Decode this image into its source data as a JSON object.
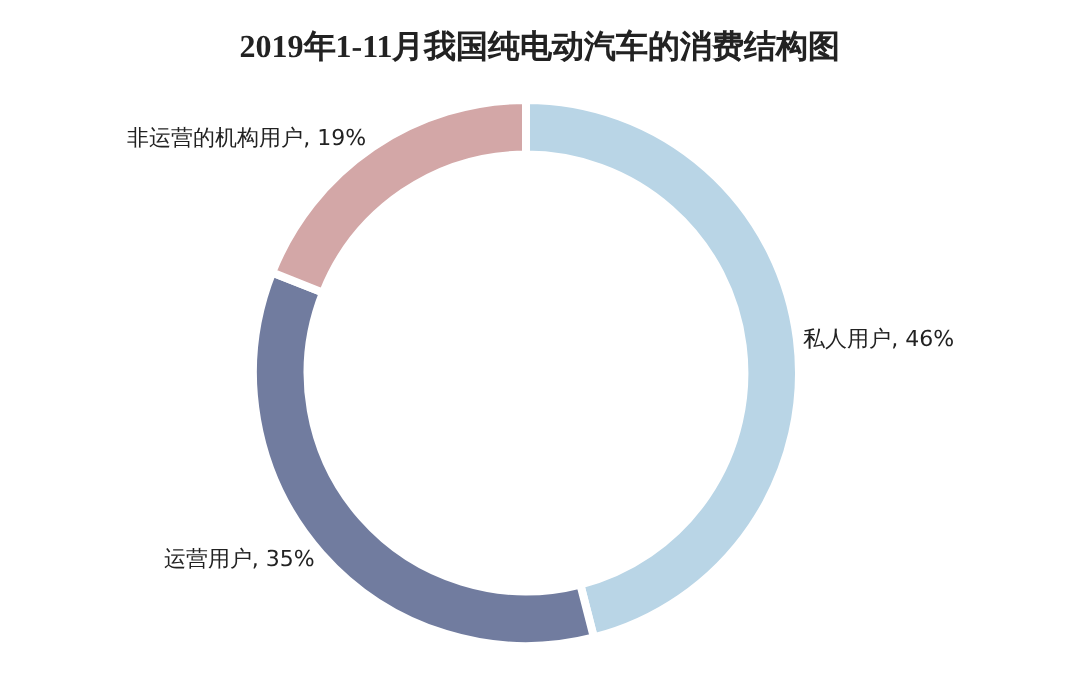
{
  "chart_data": {
    "type": "donut",
    "title": "2019年1-11月我国纯电动汽车的消费结构图",
    "categories": [
      "私人用户",
      "运营用户",
      "非运营的机构用户"
    ],
    "values": [
      46,
      35,
      19
    ],
    "value_labels": [
      "46%",
      "35%",
      "19%"
    ],
    "colors": [
      "#b9d5e6",
      "#717c9f",
      "#d3a7a7"
    ],
    "legend": false
  }
}
